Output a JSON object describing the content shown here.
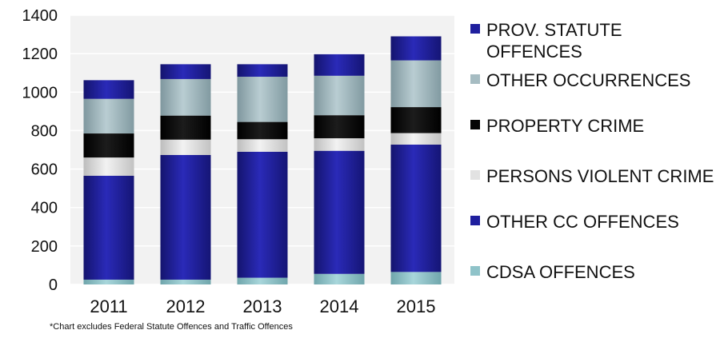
{
  "chart_data": {
    "type": "bar",
    "stacked": true,
    "categories": [
      "2011",
      "2012",
      "2013",
      "2014",
      "2015"
    ],
    "ylim": [
      0,
      1400
    ],
    "yticks": [
      "0",
      "200",
      "400",
      "600",
      "800",
      "1000",
      "1200",
      "1400"
    ],
    "ytick_values": [
      0,
      200,
      400,
      600,
      800,
      1000,
      1200,
      1400
    ],
    "series": [
      {
        "name": "CDSA OFFENCES",
        "color": "#8fc3c9",
        "values": [
          25,
          25,
          35,
          55,
          65
        ]
      },
      {
        "name": "OTHER CC OFFENCES",
        "color": "#1f1f9e",
        "values": [
          540,
          648,
          655,
          640,
          662
        ]
      },
      {
        "name": "PERSONS VIOLENT CRIME",
        "color": "#e2e2e2",
        "values": [
          95,
          80,
          65,
          65,
          60
        ]
      },
      {
        "name": "PROPERTY CRIME",
        "color": "#050505",
        "values": [
          125,
          125,
          90,
          120,
          135
        ]
      },
      {
        "name": "OTHER OCCURRENCES",
        "color": "#a6bcc2",
        "values": [
          180,
          190,
          235,
          205,
          243
        ]
      },
      {
        "name": "PROV. STATUTE OFFENCES",
        "color": "#1f1f9e",
        "values": [
          97,
          77,
          65,
          112,
          125
        ]
      }
    ],
    "legend_order": [
      "PROV. STATUTE OFFENCES",
      "OTHER OCCURRENCES",
      "PROPERTY CRIME",
      "PERSONS VIOLENT CRIME",
      "OTHER CC OFFENCES",
      "CDSA OFFENCES"
    ],
    "legend_position": "right",
    "plot_background": "#f2f2f2",
    "grid": true
  },
  "legend": {
    "items": [
      {
        "label": "PROV. STATUTE OFFENCES",
        "color": "#1f1f9e"
      },
      {
        "label": "OTHER OCCURRENCES",
        "color": "#a6bcc2"
      },
      {
        "label": "PROPERTY CRIME",
        "color": "#050505"
      },
      {
        "label": "PERSONS VIOLENT CRIME",
        "color": "#e2e2e2"
      },
      {
        "label": "OTHER CC OFFENCES",
        "color": "#1f1f9e"
      },
      {
        "label": "CDSA OFFENCES",
        "color": "#8fc3c9"
      }
    ]
  },
  "footnote": "*Chart excludes Federal Statute Offences and Traffic Offences"
}
